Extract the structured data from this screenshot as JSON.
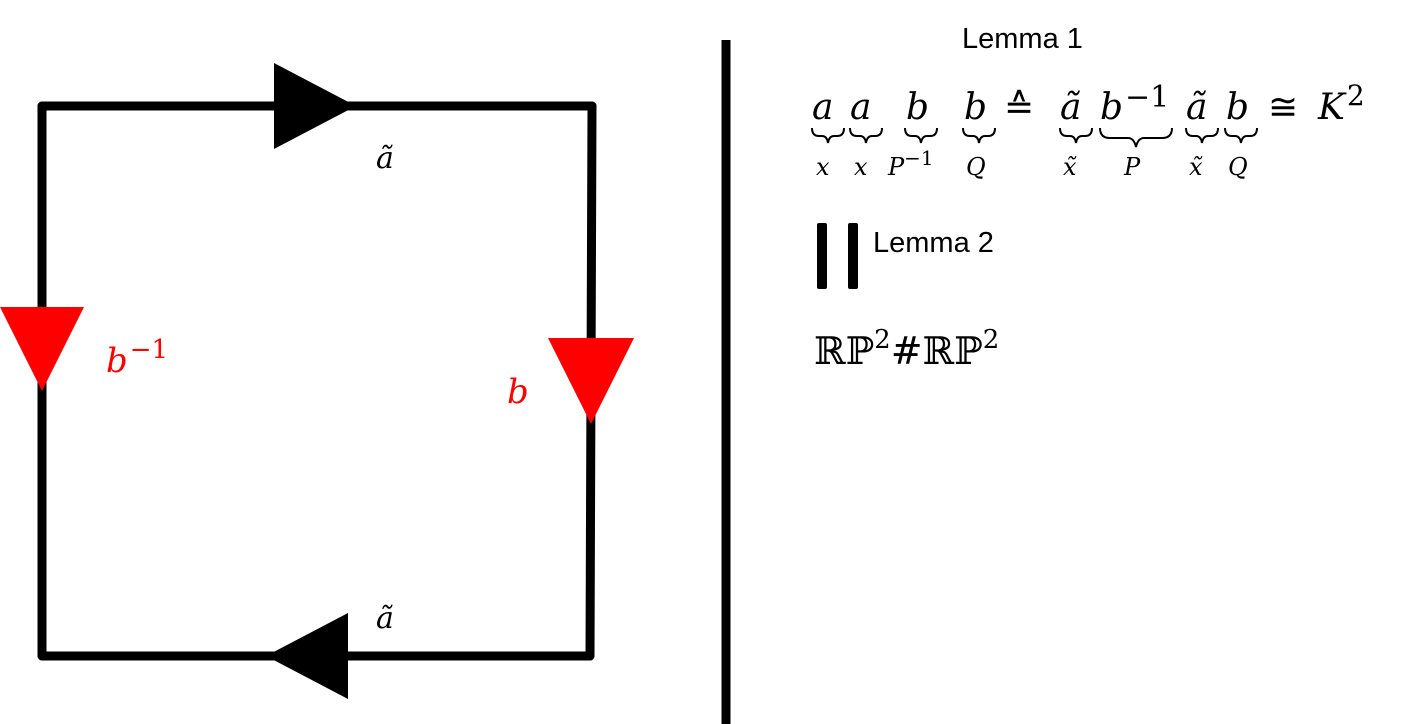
{
  "square": {
    "top_label": "ã",
    "bottom_label": "ã",
    "left_label_base": "b",
    "left_label_exp": "−1",
    "right_label": "b",
    "edge_color": "#000000",
    "highlight_color": "#ff0000"
  },
  "lemma1": {
    "label": "Lemma 1",
    "lhs": [
      {
        "top": "a",
        "bottom": "x",
        "bottom_exp": ""
      },
      {
        "top": "a",
        "bottom": "x",
        "bottom_exp": ""
      },
      {
        "top": "b",
        "bottom": "P",
        "bottom_exp": "−1"
      },
      {
        "top": "b",
        "bottom": "Q",
        "bottom_exp": ""
      }
    ],
    "equiv_symbol": "≙",
    "rhs": [
      {
        "top": "ã",
        "top_exp": "",
        "bottom": "x̃"
      },
      {
        "top": "b",
        "top_exp": "−1",
        "bottom": "P"
      },
      {
        "top": "ã",
        "top_exp": "",
        "bottom": "x̃"
      },
      {
        "top": "b",
        "top_exp": "",
        "bottom": "Q"
      }
    ],
    "cong_symbol": "≅",
    "result": "K",
    "result_exp": "2"
  },
  "lemma2": {
    "label": "Lemma 2",
    "expr_part1": "ℝℙ",
    "expr_exp1": "2",
    "expr_hash": "#",
    "expr_part2": "ℝℙ",
    "expr_exp2": "2"
  }
}
